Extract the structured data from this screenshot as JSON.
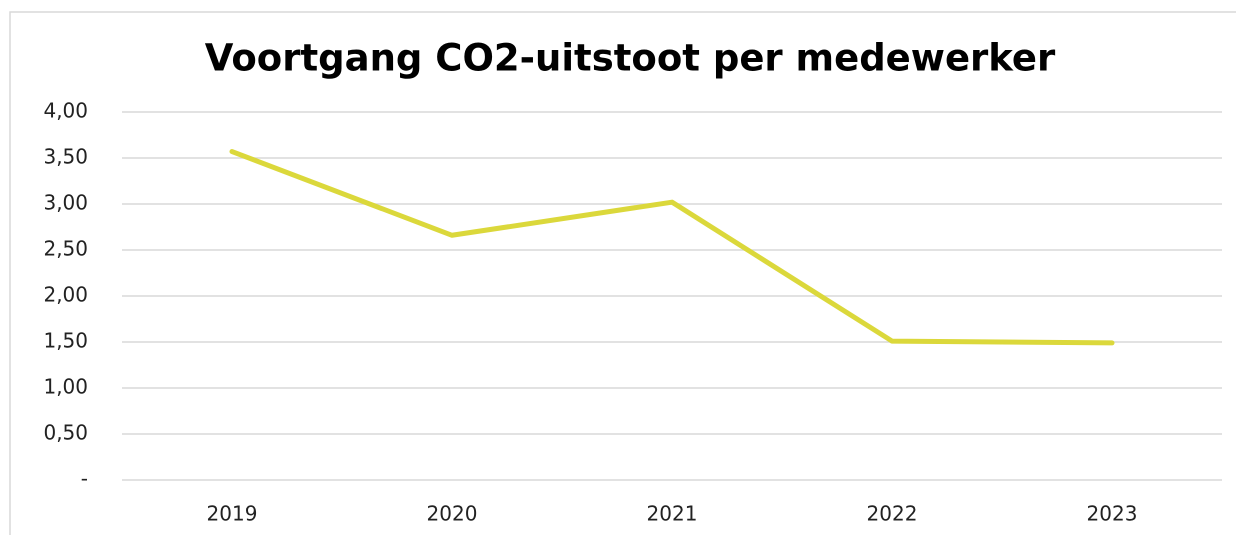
{
  "chart_data": {
    "type": "line",
    "title": "Voortgang CO2-uitstoot per medewerker",
    "categories": [
      "2019",
      "2020",
      "2021",
      "2022",
      "2023"
    ],
    "series": [
      {
        "color": "#dbd83b",
        "values": [
          3.57,
          2.66,
          3.02,
          1.51,
          1.49
        ]
      }
    ],
    "ylim": [
      0,
      4
    ],
    "yticks": [
      {
        "value": 0,
        "label": "-"
      },
      {
        "value": 0.5,
        "label": "0,50"
      },
      {
        "value": 1,
        "label": "1,00"
      },
      {
        "value": 1.5,
        "label": "1,50"
      },
      {
        "value": 2,
        "label": "2,00"
      },
      {
        "value": 2.5,
        "label": "2,50"
      },
      {
        "value": 3,
        "label": "3,00"
      },
      {
        "value": 3.5,
        "label": "3,50"
      },
      {
        "value": 4,
        "label": "4,00"
      }
    ],
    "grid": true
  }
}
